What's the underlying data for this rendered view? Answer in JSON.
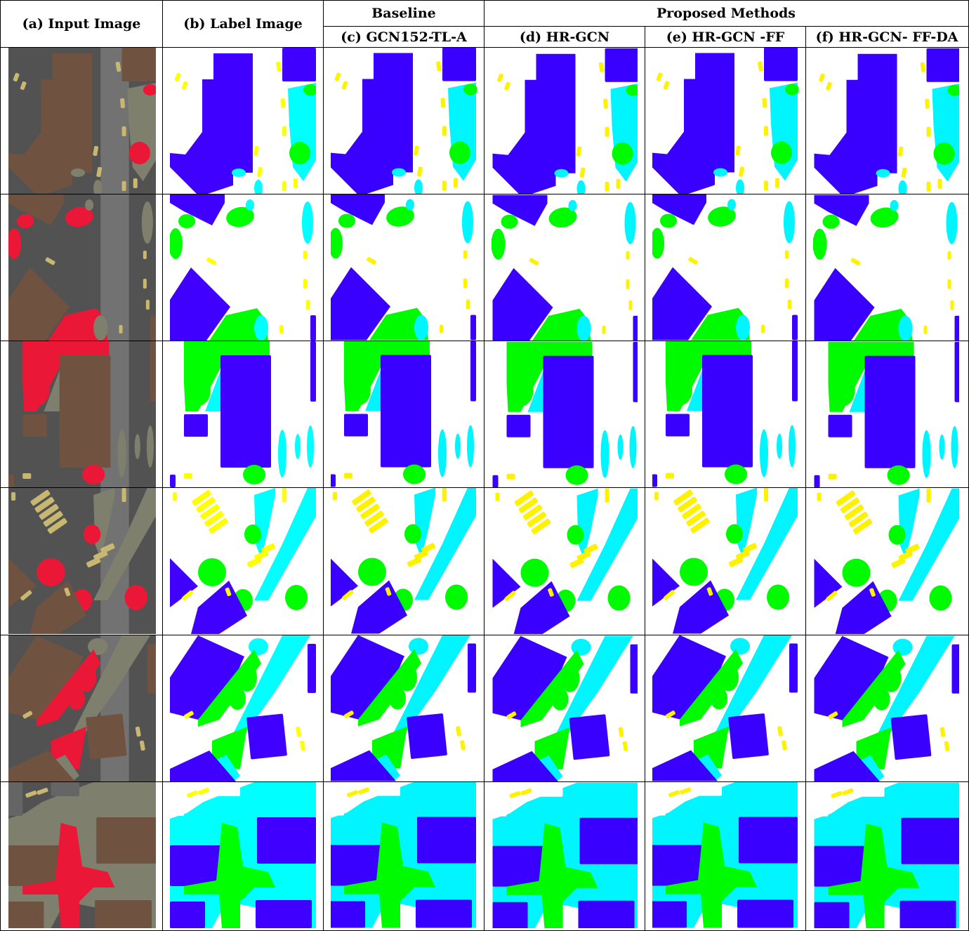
{
  "headers": {
    "input": "(a)  Input Image",
    "label": "(b)  Label Image",
    "baseline_group": "Baseline",
    "proposed_group": "Proposed Methods",
    "c": "(c)  GCN152-TL-A",
    "d": "(d)  HR-GCN",
    "e": "(e)  HR-GCN -FF",
    "f": "(f)  HR-GCN- FF-DA"
  },
  "colors": {
    "building": "#3F00FF",
    "tree": "#00FF00",
    "low_vegetation": "#00FFFF",
    "car": "#FFFF00",
    "impervious": "#FFFFFF",
    "aerial_road": "#6e6e6e",
    "aerial_roof": "#7a5a46",
    "aerial_veg": "#ff1a3c",
    "aerial_light": "#d9c77a"
  },
  "rows": [
    {
      "name": "row-1"
    },
    {
      "name": "row-2"
    },
    {
      "name": "row-3"
    },
    {
      "name": "row-4"
    },
    {
      "name": "row-5"
    },
    {
      "name": "row-6"
    }
  ]
}
